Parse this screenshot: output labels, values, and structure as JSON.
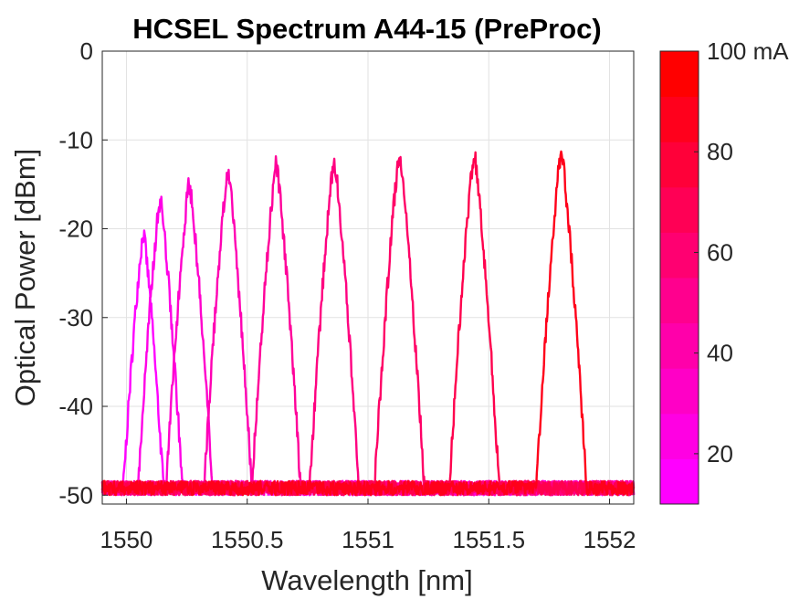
{
  "chart_data": {
    "type": "line",
    "title": "HCSEL Spectrum A44-15 (PreProc)",
    "xlabel": "Wavelength [nm]",
    "ylabel": "Optical Power [dBm]",
    "xlim": [
      1549.9,
      1552.1
    ],
    "ylim": [
      -51,
      0
    ],
    "x_ticks": [
      1550,
      1550.5,
      1551,
      1551.5,
      1552
    ],
    "x_tick_labels": [
      "1550",
      "1550.5",
      "1551",
      "1551.5",
      "1552"
    ],
    "y_ticks": [
      0,
      -10,
      -20,
      -30,
      -40,
      -50
    ],
    "y_tick_labels": [
      "0",
      "-10",
      "-20",
      "-30",
      "-40",
      "-50"
    ],
    "grid": true,
    "noise_floor_dbm": -50,
    "colorbar": {
      "range": [
        10,
        100
      ],
      "ticks": [
        20,
        40,
        60,
        80,
        100
      ],
      "tick_labels": [
        "20",
        "40",
        "60",
        "80",
        "100 mA"
      ],
      "color_low": "#ff00ff",
      "color_high": "#ff0000",
      "levels": 10
    },
    "series": [
      {
        "current_mA": 10,
        "peak_wavelength_nm": 1550.07,
        "peak_power_dbm": -20.5,
        "color": "#ff00ff"
      },
      {
        "current_mA": 20,
        "peak_wavelength_nm": 1550.14,
        "peak_power_dbm": -16.6,
        "color": "#ff00e6"
      },
      {
        "current_mA": 30,
        "peak_wavelength_nm": 1550.26,
        "peak_power_dbm": -14.8,
        "color": "#ff00cc"
      },
      {
        "current_mA": 40,
        "peak_wavelength_nm": 1550.42,
        "peak_power_dbm": -13.5,
        "color": "#ff00b3"
      },
      {
        "current_mA": 50,
        "peak_wavelength_nm": 1550.62,
        "peak_power_dbm": -12.7,
        "color": "#ff0099"
      },
      {
        "current_mA": 60,
        "peak_wavelength_nm": 1550.86,
        "peak_power_dbm": -12.2,
        "color": "#ff0080"
      },
      {
        "current_mA": 70,
        "peak_wavelength_nm": 1551.13,
        "peak_power_dbm": -11.6,
        "color": "#ff0066"
      },
      {
        "current_mA": 80,
        "peak_wavelength_nm": 1551.44,
        "peak_power_dbm": -11.4,
        "color": "#ff004d"
      },
      {
        "current_mA": 100,
        "peak_wavelength_nm": 1551.8,
        "peak_power_dbm": -11.2,
        "color": "#ff001a"
      }
    ]
  }
}
